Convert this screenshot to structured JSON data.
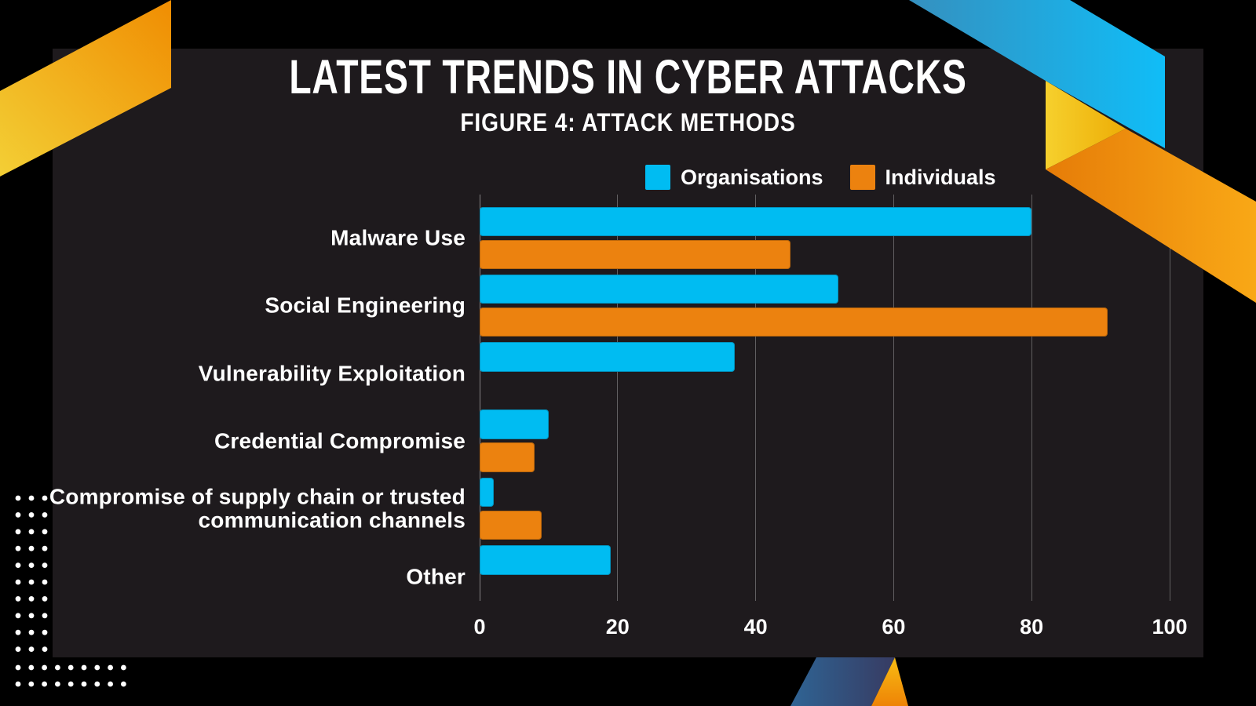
{
  "header": {
    "title": "LATEST TRENDS IN CYBER ATTACKS",
    "subtitle": "FIGURE 4: ATTACK METHODS"
  },
  "chart_data": {
    "type": "bar",
    "orientation": "horizontal",
    "title": "LATEST TRENDS IN CYBER ATTACKS",
    "subtitle": "FIGURE 4: ATTACK METHODS",
    "categories": [
      "Malware Use",
      "Social Engineering",
      "Vulnerability Exploitation",
      "Credential Compromise",
      "Compromise of supply chain or trusted communication channels",
      "Other"
    ],
    "series": [
      {
        "name": "Organisations",
        "color": "#00bcf2",
        "values": [
          80,
          52,
          37,
          10,
          2,
          19
        ]
      },
      {
        "name": "Individuals",
        "color": "#ec820f",
        "values": [
          45,
          91,
          0,
          8,
          9,
          0
        ]
      }
    ],
    "xlabel": "",
    "ylabel": "",
    "xlim": [
      0,
      100
    ],
    "xticks": [
      0,
      20,
      40,
      60,
      80,
      100
    ],
    "grid": "vertical",
    "legend_position": "top"
  },
  "colors": {
    "background": "#000000",
    "panel": "#1e1a1d",
    "text": "#ffffff",
    "gridline": "rgba(255,255,255,0.30)",
    "series_organisations": "#00bcf2",
    "series_individuals": "#ec820f",
    "accent_yellow": "#f3cf35",
    "accent_orange": "#f08d02",
    "accent_cyan": "#10bdf7",
    "accent_navy": "#373b62"
  }
}
